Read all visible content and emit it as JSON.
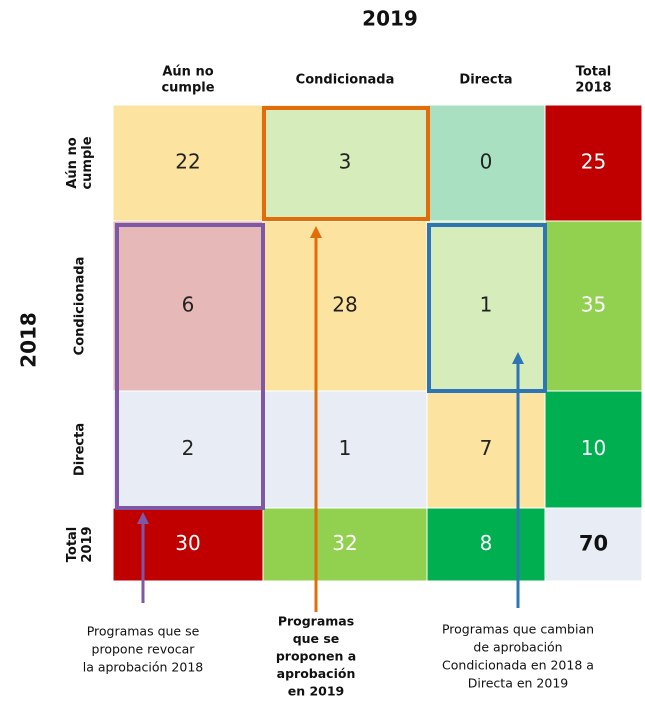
{
  "title_top": "2019",
  "title_left": "2018",
  "columns": [
    [
      "Aún no",
      "cumple"
    ],
    [
      "Condicionada"
    ],
    [
      "Directa"
    ],
    [
      "Total",
      "2018"
    ]
  ],
  "rows": [
    {
      "label": [
        "Aún no",
        "cumple"
      ],
      "cells": [
        {
          "value": 22,
          "fill": "#fde3a0",
          "color": "#222"
        },
        {
          "value": 3,
          "fill": "#d6ecbb",
          "color": "#222"
        },
        {
          "value": 0,
          "fill": "#a9e0c2",
          "color": "#222"
        },
        {
          "value": 25,
          "fill": "#c00000",
          "color": "#fff"
        }
      ]
    },
    {
      "label": [
        "Condicionada"
      ],
      "cells": [
        {
          "value": 6,
          "fill": "#e6b9b8",
          "color": "#222"
        },
        {
          "value": 28,
          "fill": "#fde3a0",
          "color": "#222"
        },
        {
          "value": 1,
          "fill": "#d6ecbb",
          "color": "#222"
        },
        {
          "value": 35,
          "fill": "#92d050",
          "color": "#fff"
        }
      ]
    },
    {
      "label": [
        "Directa"
      ],
      "cells": [
        {
          "value": 2,
          "fill": "#e7ecf5",
          "color": "#222"
        },
        {
          "value": 1,
          "fill": "#e7ecf5",
          "color": "#222"
        },
        {
          "value": 7,
          "fill": "#fde3a0",
          "color": "#222"
        },
        {
          "value": 10,
          "fill": "#00b050",
          "color": "#fff"
        }
      ]
    },
    {
      "label": [
        "Total",
        "2019"
      ],
      "cells": [
        {
          "value": 30,
          "fill": "#c00000",
          "color": "#fff"
        },
        {
          "value": 32,
          "fill": "#92d050",
          "color": "#fff"
        },
        {
          "value": 8,
          "fill": "#00b050",
          "color": "#fff"
        },
        {
          "value": 70,
          "fill": "#e7ecf5",
          "color": "#111",
          "bold": true
        }
      ]
    }
  ],
  "annotations": [
    {
      "lines": [
        "Programas que se",
        "propone revocar",
        "la aprobación 2018"
      ],
      "color": "#7e57a6",
      "bold": false
    },
    {
      "lines": [
        "Programas",
        "que se",
        "proponen a",
        "aprobación",
        "en 2019"
      ],
      "color": "#e36c0a",
      "bold": true
    },
    {
      "lines": [
        "Programas que cambian",
        "de aprobación",
        "Condicionada en 2018 a",
        "Directa en 2019"
      ],
      "color": "#2e75b6",
      "bold": false
    }
  ]
}
